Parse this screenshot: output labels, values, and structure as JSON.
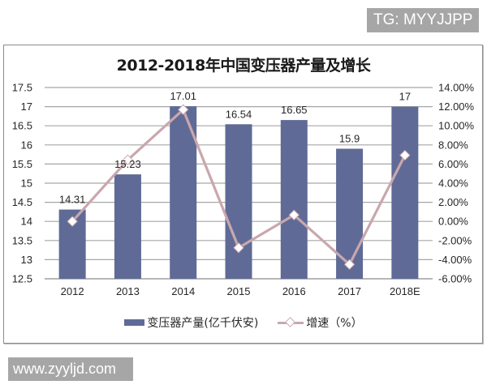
{
  "watermarks": {
    "top_right": "TG: MYYJJPP",
    "bottom_left": "www.zyyljd.com"
  },
  "chart_data": {
    "type": "bar+line",
    "title": "2012-2018年中国变压器产量及增长",
    "categories": [
      "2012",
      "2013",
      "2014",
      "2015",
      "2016",
      "2017",
      "2018E"
    ],
    "series": [
      {
        "name": "变压器产量(亿千伏安)",
        "type": "bar",
        "axis": "left",
        "color": "#5f6b96",
        "values": [
          14.31,
          15.23,
          17.01,
          16.54,
          16.65,
          15.9,
          17
        ],
        "labels": [
          "14.31",
          "15.23",
          "17.01",
          "16.54",
          "16.65",
          "15.9",
          "17"
        ]
      },
      {
        "name": "增速（%）",
        "type": "line",
        "axis": "right",
        "color": "#c9a7ad",
        "marker": "diamond",
        "values": [
          0.0,
          6.43,
          11.69,
          -2.76,
          0.67,
          -4.5,
          6.92
        ]
      }
    ],
    "left_axis": {
      "min": 12.5,
      "max": 17.5,
      "step": 0.5,
      "ticks": [
        "17.5",
        "17",
        "16.5",
        "16",
        "15.5",
        "15",
        "14.5",
        "14",
        "13.5",
        "13",
        "12.5"
      ]
    },
    "right_axis": {
      "min": -6,
      "max": 14,
      "step": 2,
      "ticks": [
        "14.00%",
        "12.00%",
        "10.00%",
        "8.00%",
        "6.00%",
        "4.00%",
        "2.00%",
        "0.00%",
        "-2.00%",
        "-4.00%",
        "-6.00%"
      ]
    },
    "xlabel": "",
    "ylabel": "",
    "grid": true,
    "legend_position": "bottom"
  },
  "legend": {
    "bar_label": "变压器产量(亿千伏安)",
    "line_label": "增速（%）"
  }
}
